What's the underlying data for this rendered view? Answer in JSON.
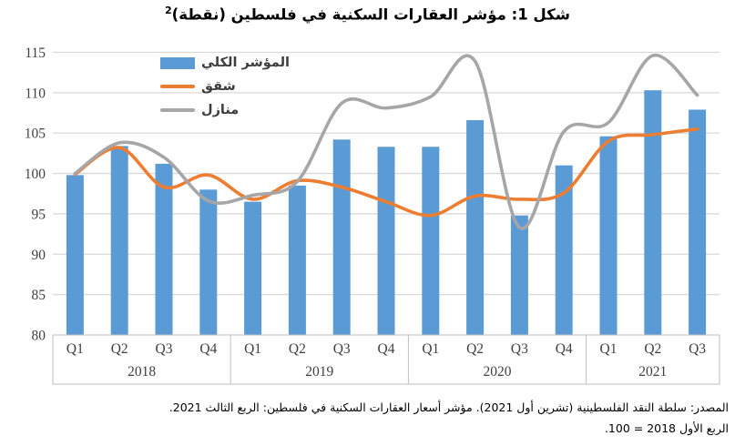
{
  "title": {
    "text": "شكل 1: مؤشر العقارات السكنية في فلسطين (نقطة)",
    "footnote": "2"
  },
  "footer": {
    "line1": "المصدر: سلطة النقد الفلسطينية (تشرين أول 2021). مؤشر أسعار العقارات السكنية في فلسطين: الربع الثالث 2021.",
    "line2": "الربع الأول 2018 = 100."
  },
  "chart_data": {
    "type": "combo",
    "title": "شكل 1: مؤشر العقارات السكنية في فلسطين (نقطة)2",
    "xlabel": "",
    "ylabel": "",
    "ylim": [
      80,
      115
    ],
    "yticks": [
      80,
      85,
      90,
      95,
      100,
      105,
      110,
      115
    ],
    "grid": true,
    "legend_position": "top-left",
    "quarters": [
      "Q1",
      "Q2",
      "Q3",
      "Q4",
      "Q1",
      "Q2",
      "Q3",
      "Q4",
      "Q1",
      "Q2",
      "Q3",
      "Q4",
      "Q1",
      "Q2",
      "Q3"
    ],
    "year_groups": [
      {
        "label": "2018",
        "count": 4
      },
      {
        "label": "2019",
        "count": 4
      },
      {
        "label": "2020",
        "count": 4
      },
      {
        "label": "2021",
        "count": 3
      }
    ],
    "series": [
      {
        "name": "المؤشر الكلي",
        "type": "bar",
        "color": "#5B9BD5",
        "values": [
          99.8,
          103.4,
          101.2,
          98.0,
          96.5,
          98.5,
          104.2,
          103.3,
          103.3,
          106.6,
          94.8,
          101.0,
          104.6,
          110.3,
          107.9
        ]
      },
      {
        "name": "شقق",
        "type": "line",
        "color": "#ED7D31",
        "values": [
          99.9,
          103.2,
          98.3,
          99.8,
          96.8,
          99.1,
          98.3,
          96.5,
          94.8,
          97.2,
          96.8,
          97.6,
          104.0,
          104.8,
          105.5
        ]
      },
      {
        "name": "منازل",
        "type": "line",
        "color": "#A6A6A6",
        "values": [
          100.0,
          103.8,
          102.0,
          96.6,
          97.3,
          99.0,
          108.7,
          108.1,
          109.5,
          113.9,
          93.3,
          105.2,
          106.3,
          114.6,
          109.7
        ]
      }
    ],
    "colors": {
      "gridline": "#D9D9D9",
      "axis_border": "#BFBFBF",
      "tick_text": "#404040"
    }
  }
}
